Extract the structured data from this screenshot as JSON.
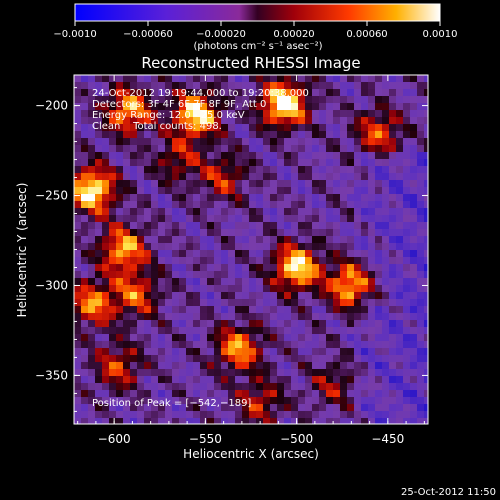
{
  "chart_data": {
    "type": "heatmap",
    "title": "Reconstructed RHESSI Image",
    "xlabel": "Heliocentric X (arcsec)",
    "ylabel": "Heliocentric Y (arcsec)",
    "xlim": [
      -622,
      -428
    ],
    "ylim": [
      -377,
      -183
    ],
    "x_ticks": [
      -600,
      -550,
      -500,
      -450
    ],
    "x_tick_labels": [
      "−600",
      "−550",
      "−500",
      "−450"
    ],
    "y_ticks": [
      -200,
      -250,
      -300,
      -350
    ],
    "y_tick_labels": [
      "−200",
      "−250",
      "−300",
      "−350"
    ],
    "colorbar": {
      "range": [
        -0.001,
        0.001
      ],
      "ticks": [
        -0.001,
        -0.0006,
        -0.0002,
        0.0002,
        0.0006,
        0.001
      ],
      "tick_labels": [
        "−0.0010",
        "−0.00060",
        "−0.00020",
        "0.00020",
        "0.00060",
        "0.0010"
      ],
      "unit_label": "(photons cm⁻² s⁻¹ asec⁻²)"
    },
    "annotations": [
      "24-Oct-2012 19:19:44.000 to 19:20:38.000",
      "Detectors: 3F 4F 6F 7F 8F 9F, Att 0",
      "Energy Range: 12.0 - 25.0 keV",
      "Clean    Total counts: 498."
    ],
    "peak_label": "Position of Peak = [−542,−189]",
    "peak": [
      -542,
      -189
    ],
    "sources": [
      {
        "x": -507,
        "y": -199,
        "amp": 1.0
      },
      {
        "x": -555,
        "y": -205,
        "amp": 0.9
      },
      {
        "x": -592,
        "y": -203,
        "amp": 0.75
      },
      {
        "x": -612,
        "y": -247,
        "amp": 0.95
      },
      {
        "x": -595,
        "y": -280,
        "amp": 0.75
      },
      {
        "x": -588,
        "y": -305,
        "amp": 0.55
      },
      {
        "x": -612,
        "y": -310,
        "amp": 0.65
      },
      {
        "x": -598,
        "y": -345,
        "amp": 0.5
      },
      {
        "x": -540,
        "y": -240,
        "amp": 0.45
      },
      {
        "x": -500,
        "y": -290,
        "amp": 0.9
      },
      {
        "x": -470,
        "y": -300,
        "amp": 0.8
      },
      {
        "x": -532,
        "y": -335,
        "amp": 0.7
      },
      {
        "x": -565,
        "y": -230,
        "amp": 0.4
      },
      {
        "x": -455,
        "y": -215,
        "amp": 0.55
      },
      {
        "x": -520,
        "y": -365,
        "amp": 0.45
      },
      {
        "x": -480,
        "y": -355,
        "amp": 0.35
      }
    ],
    "footer_timestamp": "25-Oct-2012 11:50"
  }
}
